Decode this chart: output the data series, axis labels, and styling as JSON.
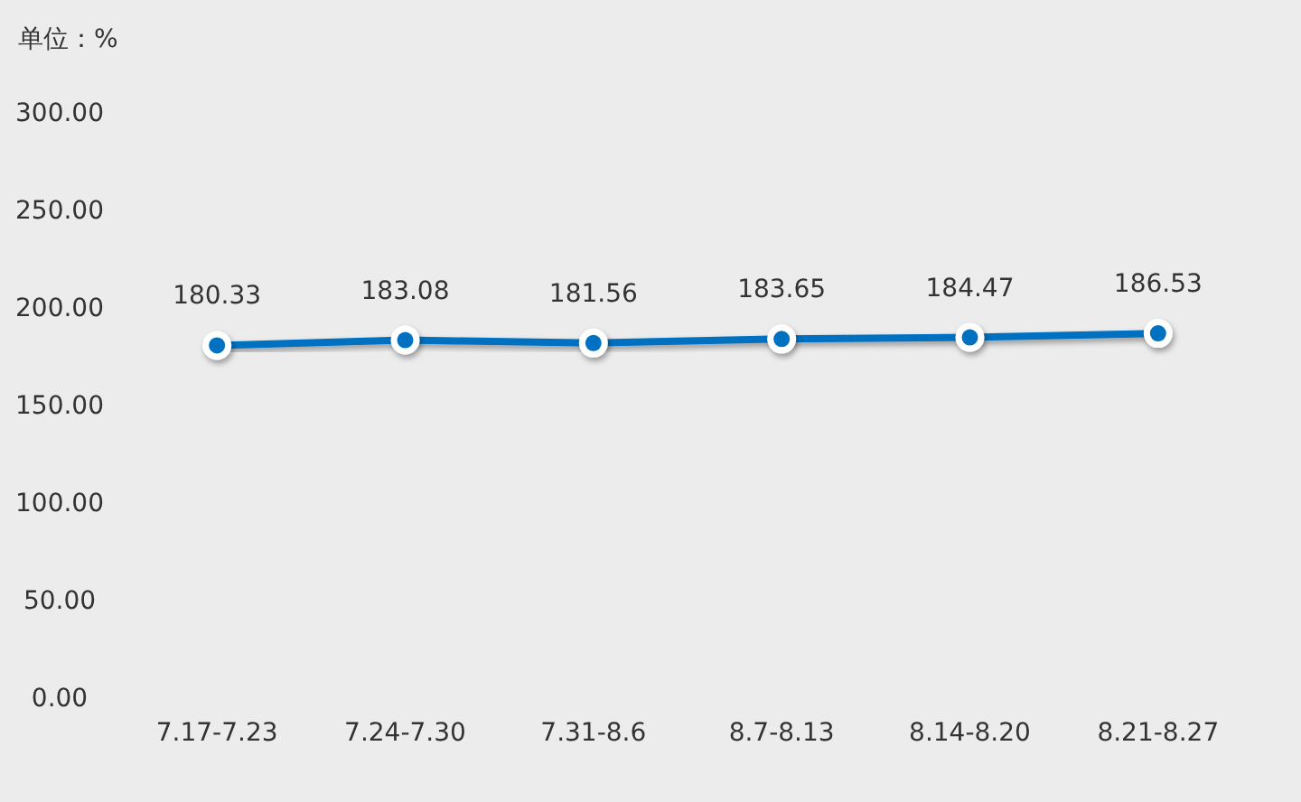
{
  "chart_data": {
    "type": "line",
    "ylabel": "单位：%",
    "categories": [
      "7.17-7.23",
      "7.24-7.30",
      "7.31-8.6",
      "8.7-8.13",
      "8.14-8.20",
      "8.21-8.27"
    ],
    "series": [
      {
        "color": "#0070c0",
        "values": [
          180.33,
          183.08,
          181.56,
          183.65,
          184.47,
          186.53
        ]
      }
    ],
    "ylim": [
      0,
      300
    ],
    "yticks": [
      {
        "value": 0,
        "label": "0.00"
      },
      {
        "value": 50,
        "label": "50.00"
      },
      {
        "value": 100,
        "label": "100.00"
      },
      {
        "value": 150,
        "label": "150.00"
      },
      {
        "value": 200,
        "label": "200.00"
      },
      {
        "value": 250,
        "label": "250.00"
      },
      {
        "value": 300,
        "label": "300.00"
      }
    ],
    "data_labels": true,
    "marker": "circle",
    "line_style": "solid"
  }
}
